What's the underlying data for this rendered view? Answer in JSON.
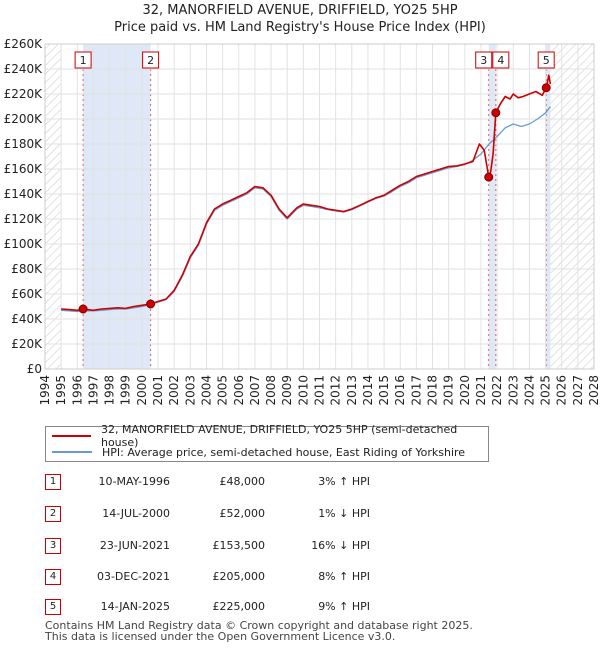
{
  "chart_data": {
    "type": "line",
    "title_line1": "32, MANORFIELD AVENUE, DRIFFIELD, YO25 5HP",
    "title_line2": "Price paid vs. HM Land Registry's House Price Index (HPI)",
    "xlim": [
      1994,
      2028
    ],
    "ylim": [
      0,
      260000
    ],
    "x_ticks": [
      "1994",
      "1995",
      "1996",
      "1997",
      "1998",
      "1999",
      "2000",
      "2001",
      "2002",
      "2003",
      "2004",
      "2005",
      "2006",
      "2007",
      "2008",
      "2009",
      "2010",
      "2011",
      "2012",
      "2013",
      "2014",
      "2015",
      "2016",
      "2017",
      "2018",
      "2019",
      "2020",
      "2021",
      "2022",
      "2023",
      "2024",
      "2025",
      "2026",
      "2027",
      "2028"
    ],
    "y_ticks": [
      {
        "value": 0,
        "label": "£0"
      },
      {
        "value": 20000,
        "label": "£20K"
      },
      {
        "value": 40000,
        "label": "£40K"
      },
      {
        "value": 60000,
        "label": "£60K"
      },
      {
        "value": 80000,
        "label": "£80K"
      },
      {
        "value": 100000,
        "label": "£100K"
      },
      {
        "value": 120000,
        "label": "£120K"
      },
      {
        "value": 140000,
        "label": "£140K"
      },
      {
        "value": 160000,
        "label": "£160K"
      },
      {
        "value": 180000,
        "label": "£180K"
      },
      {
        "value": 200000,
        "label": "£200K"
      },
      {
        "value": 220000,
        "label": "£220K"
      },
      {
        "value": 240000,
        "label": "£240K"
      },
      {
        "value": 260000,
        "label": "£260K"
      }
    ],
    "shaded_regions": [
      [
        1996.36,
        2000.54
      ],
      [
        2021.48,
        2021.92
      ],
      [
        2025.04,
        2025.3
      ]
    ],
    "hatched_regions": [
      [
        1994,
        1995
      ],
      [
        2025.3,
        2028
      ]
    ],
    "series": [
      {
        "name": "32, MANORFIELD AVENUE, DRIFFIELD, YO25 5HP (semi-detached house)",
        "color": "#cc0000",
        "x": [
          1995,
          1995.5,
          1996,
          1996.36,
          1997,
          1997.5,
          1998,
          1998.5,
          1999,
          1999.5,
          2000,
          2000.54,
          2001,
          2001.5,
          2002,
          2002.5,
          2003,
          2003.5,
          2004,
          2004.5,
          2005,
          2005.5,
          2006,
          2006.5,
          2007,
          2007.5,
          2008,
          2008.5,
          2009,
          2009.3,
          2009.6,
          2010,
          2010.5,
          2011,
          2011.5,
          2012,
          2012.5,
          2013,
          2013.5,
          2014,
          2014.5,
          2015,
          2015.5,
          2016,
          2016.5,
          2017,
          2017.5,
          2018,
          2018.5,
          2019,
          2019.5,
          2020,
          2020.5,
          2020.9,
          2021.2,
          2021.4,
          2021.48,
          2021.6,
          2021.75,
          2021.92,
          2022.2,
          2022.5,
          2022.8,
          2023,
          2023.3,
          2023.6,
          2024,
          2024.4,
          2024.8,
          2025.04,
          2025.2,
          2025.3
        ],
        "values": [
          48000,
          47500,
          47000,
          48000,
          47000,
          48000,
          48500,
          49000,
          48500,
          50000,
          51000,
          52000,
          54000,
          56000,
          63000,
          75000,
          90000,
          100000,
          117000,
          128000,
          132000,
          135000,
          138000,
          141000,
          146000,
          145000,
          139000,
          128000,
          121000,
          125000,
          129000,
          132000,
          131000,
          130000,
          128000,
          127000,
          126000,
          128000,
          131000,
          134000,
          137000,
          139000,
          143000,
          147000,
          150000,
          154000,
          156000,
          158000,
          160000,
          162000,
          162500,
          164000,
          166000,
          180000,
          175000,
          160000,
          153500,
          158000,
          172000,
          205000,
          212000,
          218000,
          216000,
          220000,
          217000,
          218000,
          220000,
          222000,
          219000,
          225000,
          235000,
          228000
        ]
      },
      {
        "name": "HPI: Average price, semi-detached house, East Riding of Yorkshire",
        "color": "#6a9ad4",
        "x": [
          1995,
          1995.5,
          1996,
          1996.5,
          1997,
          1997.5,
          1998,
          1998.5,
          1999,
          1999.5,
          2000,
          2000.5,
          2001,
          2001.5,
          2002,
          2002.5,
          2003,
          2003.5,
          2004,
          2004.5,
          2005,
          2005.5,
          2006,
          2006.5,
          2007,
          2007.5,
          2008,
          2008.5,
          2009,
          2009.3,
          2009.6,
          2010,
          2010.5,
          2011,
          2011.5,
          2012,
          2012.5,
          2013,
          2013.5,
          2014,
          2014.5,
          2015,
          2015.5,
          2016,
          2016.5,
          2017,
          2017.5,
          2018,
          2018.5,
          2019,
          2019.5,
          2020,
          2020.5,
          2021,
          2021.5,
          2022,
          2022.5,
          2023,
          2023.5,
          2024,
          2024.5,
          2025,
          2025.3
        ],
        "values": [
          47000,
          46500,
          46000,
          46500,
          46500,
          47000,
          47500,
          48000,
          48000,
          49000,
          50000,
          51500,
          53500,
          55500,
          62000,
          74000,
          89000,
          99000,
          116000,
          127000,
          131000,
          134000,
          137000,
          140000,
          145000,
          144000,
          138000,
          127000,
          120000,
          124000,
          128000,
          131000,
          130000,
          129000,
          127500,
          126500,
          125500,
          127500,
          130500,
          133500,
          136500,
          138500,
          142000,
          146000,
          149000,
          153000,
          155000,
          157000,
          159000,
          161000,
          162000,
          163500,
          167000,
          172000,
          180000,
          186000,
          193000,
          196000,
          194000,
          196000,
          200000,
          205000,
          210000
        ]
      }
    ],
    "sales": [
      {
        "num": "1",
        "x": 1996.36,
        "value": 48000,
        "date": "10-MAY-1996",
        "price": "£48,000",
        "hpi": "3% ↑ HPI"
      },
      {
        "num": "2",
        "x": 2000.54,
        "value": 52000,
        "date": "14-JUL-2000",
        "price": "£52,000",
        "hpi": "1% ↓ HPI"
      },
      {
        "num": "3",
        "x": 2021.48,
        "value": 153500,
        "date": "23-JUN-2021",
        "price": "£153,500",
        "hpi": "16% ↓ HPI"
      },
      {
        "num": "4",
        "x": 2021.92,
        "value": 205000,
        "date": "03-DEC-2021",
        "price": "£205,000",
        "hpi": "8% ↑ HPI"
      },
      {
        "num": "5",
        "x": 2025.04,
        "value": 225000,
        "date": "14-JAN-2025",
        "price": "£225,000",
        "hpi": "9% ↑ HPI"
      }
    ]
  },
  "legend": {
    "property_label": "32, MANORFIELD AVENUE, DRIFFIELD, YO25 5HP (semi-detached house)",
    "hpi_label": "HPI: Average price, semi-detached house, East Riding of Yorkshire",
    "property_color": "#cc0000",
    "hpi_color": "#6a9ad4"
  },
  "footer": {
    "line1": "Contains HM Land Registry data © Crown copyright and database right 2025.",
    "line2": "This data is licensed under the Open Government Licence v3.0."
  }
}
